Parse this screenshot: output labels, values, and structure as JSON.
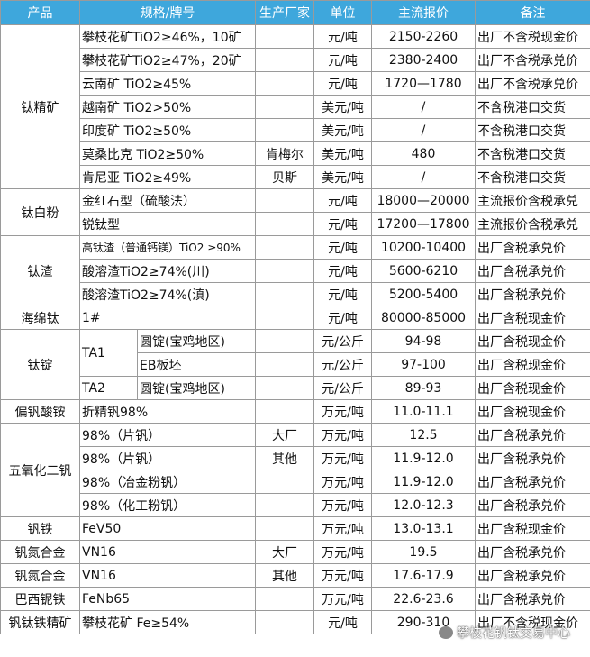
{
  "table": {
    "header": [
      "产品",
      "规格/牌号",
      "生产厂家",
      "单位",
      "主流报价",
      "备注"
    ],
    "groups": [
      {
        "product": "钛精矿",
        "rows": [
          {
            "spec": "攀枝花矿TiO2≥46%，10矿",
            "unit": "元/吨",
            "price": "2150-2260",
            "note": "出厂不含税现金价"
          },
          {
            "spec": "攀枝花矿TiO2≥47%，20矿",
            "unit": "元/吨",
            "price": "2380-2400",
            "note": "出厂不含税承兑价"
          },
          {
            "spec": "云南矿 TiO2≥45%",
            "unit": "元/吨",
            "price": "1720—1780",
            "note": "出厂不含税承兑价"
          },
          {
            "spec": "越南矿 TiO2>50%",
            "unit": "美元/吨",
            "price": "/",
            "note": "不含税港口交货"
          },
          {
            "spec": "印度矿 TiO2≥50%",
            "unit": "美元/吨",
            "price": "/",
            "note": "不含税港口交货"
          },
          {
            "spec": "莫桑比克 TiO2≥50%",
            "maker": "肯梅尔",
            "unit": "美元/吨",
            "price": "480",
            "note": "不含税港口交货"
          },
          {
            "spec": "肯尼亚 TiO2≥49%",
            "maker": "贝斯",
            "unit": "美元/吨",
            "price": "/",
            "note": "不含税港口交货"
          }
        ]
      },
      {
        "product": "钛白粉",
        "rows": [
          {
            "spec": "金红石型（硫酸法）",
            "unit": "元/吨",
            "price": "18000—20000",
            "note": "主流报价含税承兑"
          },
          {
            "spec": "锐钛型",
            "unit": "元/吨",
            "price": "17200—17800",
            "note": "主流报价含税承兑"
          }
        ]
      },
      {
        "product": "钛渣",
        "rows": [
          {
            "spec": "高钛渣（普通钙镁）TiO2 ≥90%",
            "unit": "元/吨",
            "price": "10200-10400",
            "note": "出厂含税承兑价"
          },
          {
            "spec": "酸溶渣TiO2≥74%(川)",
            "unit": "元/吨",
            "price": "5600-6210",
            "note": "出厂含税承兑价"
          },
          {
            "spec": "酸溶渣TiO2≥74%(滇)",
            "unit": "元/吨",
            "price": "5200-5400",
            "note": "出厂含税承兑价"
          }
        ]
      },
      {
        "product": "海绵钛",
        "rows": [
          {
            "spec": "1#",
            "unit": "元/吨",
            "price": "80000-85000",
            "note": "出厂含税现金价"
          }
        ]
      },
      {
        "product": "钛锭",
        "rows": [
          {
            "spec": "TA1",
            "grade": "圆锭(宝鸡地区)",
            "unit": "元/公斤",
            "price": "94-98",
            "note": "出厂含税现金价"
          },
          {
            "grade": "EB板坯",
            "unit": "元/公斤",
            "price": "97-100",
            "note": "出厂含税现金价"
          },
          {
            "spec": "TA2",
            "grade": "圆锭(宝鸡地区)",
            "unit": "元/公斤",
            "price": "89-93",
            "note": "出厂含税现金价"
          }
        ]
      },
      {
        "product": "偏钒酸铵",
        "rows": [
          {
            "spec": "折精钒98%",
            "unit": "万元/吨",
            "price": "11.0-11.1",
            "note": "出厂含税现金价"
          }
        ]
      },
      {
        "product": "五氧化二钒",
        "rows": [
          {
            "spec": "98%（片钒）",
            "maker": "大厂",
            "unit": "万元/吨",
            "price": "12.5",
            "note": "出厂含税承兑价"
          },
          {
            "spec": "98%（片钒）",
            "maker": "其他",
            "unit": "万元/吨",
            "price": "11.9-12.0",
            "note": "出厂含税承兑价"
          },
          {
            "spec": "98%（冶金粉钒）",
            "unit": "万元/吨",
            "price": "11.9-12.0",
            "note": "出厂含税承兑价"
          },
          {
            "spec": "98%（化工粉钒）",
            "unit": "万元/吨",
            "price": "12.0-12.3",
            "note": "出厂含税承兑价"
          }
        ]
      },
      {
        "product": "钒铁",
        "rows": [
          {
            "spec": "FeV50",
            "unit": "万元/吨",
            "price": "13.0-13.1",
            "note": "出厂含税现金价"
          }
        ]
      },
      {
        "product": "钒氮合金",
        "rows": [
          {
            "spec": "VN16",
            "maker": "大厂",
            "unit": "万元/吨",
            "price": "19.5",
            "note": "出厂含税承兑价"
          }
        ]
      },
      {
        "product": "钒氮合金",
        "rows": [
          {
            "spec": "VN16",
            "maker": "其他",
            "unit": "万元/吨",
            "price": "17.6-17.9",
            "note": "出厂含税承兑价"
          }
        ]
      },
      {
        "product": "巴西铌铁",
        "rows": [
          {
            "spec": "FeNb65",
            "unit": "万元/吨",
            "price": "22.6-23.6",
            "note": "出厂含税承兑价"
          }
        ]
      },
      {
        "product": "钒钛铁精矿",
        "rows": [
          {
            "spec": "攀枝花矿 Fe≥54%",
            "unit": "元/吨",
            "price": "290-310",
            "note": "出厂不含税现金价"
          }
        ]
      }
    ]
  },
  "watermark": "攀枝花钒钛交易中心"
}
